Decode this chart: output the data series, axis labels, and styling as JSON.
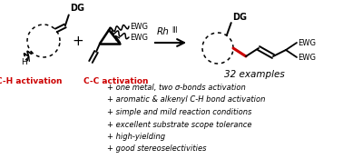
{
  "background_color": "#ffffff",
  "ch_activation_label": "C-H activation",
  "cc_activation_label": "C-C activation",
  "rh_label": "Rh",
  "rh_super": "III",
  "examples_text": "32 examples",
  "bullet_points": [
    "+ one metal, two σ-bonds activation",
    "+ aromatic & alkenyl C-H bond activation",
    "+ simple and mild reaction conditions",
    "+ excellent substrate scope tolerance",
    "+ high-yielding",
    "+ good stereoselectivities"
  ],
  "red_color": "#cc0000",
  "black_color": "#000000",
  "dg_label": "DG",
  "ewg_label": "EWG",
  "h_label": "H"
}
